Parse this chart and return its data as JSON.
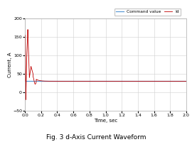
{
  "title": "Fig. 3 d-Axis Current Waveform",
  "xlabel": "Time, sec",
  "ylabel": "Current, A",
  "xlim": [
    0,
    2.0
  ],
  "ylim": [
    -50,
    200
  ],
  "yticks": [
    -50,
    0,
    50,
    100,
    150,
    200
  ],
  "xticks": [
    0.0,
    0.2,
    0.4,
    0.6,
    0.8,
    1.0,
    1.2,
    1.4,
    1.6,
    1.8,
    2.0
  ],
  "command_value": 30,
  "command_color": "#5B9BD5",
  "id_color": "#C00000",
  "legend_labels": [
    "Command value",
    "Id"
  ],
  "background_color": "#ffffff",
  "grid_color": "#d0d0d0"
}
